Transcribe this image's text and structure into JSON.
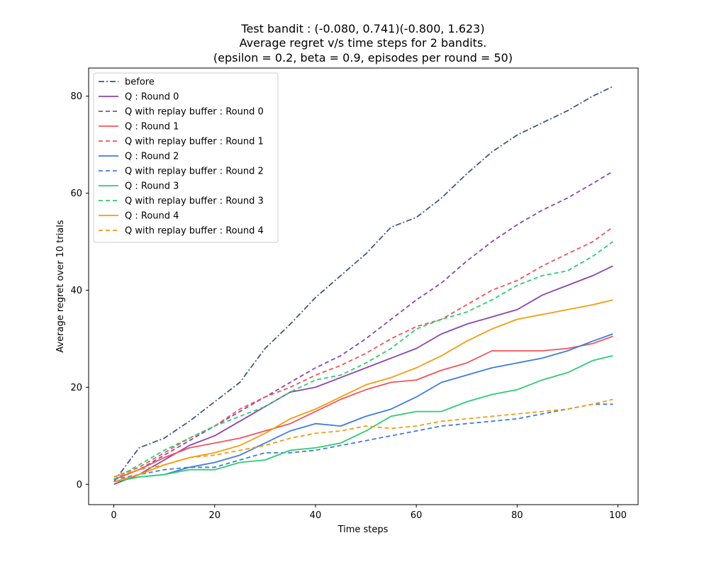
{
  "chart_data": {
    "type": "line",
    "title_lines": [
      "Test bandit : (-0.080, 0.741)(-0.800, 1.623)",
      "Average regret v/s time steps for 2 bandits.",
      "(epsilon = 0.2, beta = 0.9, episodes per round = 50)"
    ],
    "xlabel": "Time steps",
    "ylabel": "Average regret over 10 trials",
    "xlim": [
      -5,
      104
    ],
    "ylim": [
      -4.2,
      85.8
    ],
    "xticks": [
      0,
      20,
      40,
      60,
      80,
      100
    ],
    "yticks": [
      0,
      20,
      40,
      60,
      80
    ],
    "grid": false,
    "legend_position": "upper-left",
    "series": [
      {
        "name": "before",
        "color": "#3d5a80",
        "dash": "dashdot",
        "points": [
          [
            0,
            0.5
          ],
          [
            5,
            7.5
          ],
          [
            10,
            9.5
          ],
          [
            15,
            13
          ],
          [
            20,
            17
          ],
          [
            25,
            21
          ],
          [
            30,
            28
          ],
          [
            35,
            33
          ],
          [
            40,
            38.5
          ],
          [
            45,
            43
          ],
          [
            50,
            47.5
          ],
          [
            55,
            53
          ],
          [
            60,
            55
          ],
          [
            65,
            59
          ],
          [
            70,
            64
          ],
          [
            75,
            68.5
          ],
          [
            80,
            72
          ],
          [
            85,
            74.5
          ],
          [
            90,
            77
          ],
          [
            95,
            80
          ],
          [
            99,
            82
          ]
        ]
      },
      {
        "name": "Q : Round 0",
        "color": "#8e44ad",
        "dash": "solid",
        "points": [
          [
            0,
            0
          ],
          [
            5,
            2
          ],
          [
            10,
            5
          ],
          [
            15,
            8
          ],
          [
            20,
            10
          ],
          [
            25,
            13
          ],
          [
            30,
            16
          ],
          [
            35,
            19
          ],
          [
            40,
            20
          ],
          [
            45,
            22
          ],
          [
            50,
            24
          ],
          [
            55,
            26
          ],
          [
            60,
            28
          ],
          [
            65,
            31
          ],
          [
            70,
            33
          ],
          [
            75,
            34.5
          ],
          [
            80,
            36
          ],
          [
            85,
            39
          ],
          [
            90,
            41
          ],
          [
            95,
            43
          ],
          [
            99,
            45
          ]
        ]
      },
      {
        "name": "Q with replay buffer : Round 0",
        "color": "#8e44ad",
        "dash": "dashed",
        "points": [
          [
            0,
            1
          ],
          [
            5,
            3
          ],
          [
            10,
            6
          ],
          [
            15,
            9
          ],
          [
            20,
            12
          ],
          [
            25,
            15
          ],
          [
            30,
            18
          ],
          [
            35,
            21
          ],
          [
            40,
            24
          ],
          [
            45,
            26.5
          ],
          [
            50,
            30
          ],
          [
            55,
            34
          ],
          [
            60,
            38
          ],
          [
            65,
            41.5
          ],
          [
            70,
            46
          ],
          [
            75,
            50
          ],
          [
            80,
            53.5
          ],
          [
            85,
            56.5
          ],
          [
            90,
            59
          ],
          [
            95,
            62
          ],
          [
            99,
            64.5
          ]
        ]
      },
      {
        "name": "Q : Round 1",
        "color": "#f2545b",
        "dash": "solid",
        "points": [
          [
            0,
            1
          ],
          [
            5,
            3
          ],
          [
            10,
            5.5
          ],
          [
            15,
            7.5
          ],
          [
            20,
            8.5
          ],
          [
            25,
            9.5
          ],
          [
            30,
            11
          ],
          [
            35,
            12.5
          ],
          [
            40,
            15
          ],
          [
            45,
            17.5
          ],
          [
            50,
            19.5
          ],
          [
            55,
            21
          ],
          [
            60,
            21.5
          ],
          [
            65,
            23.5
          ],
          [
            70,
            25
          ],
          [
            75,
            27.5
          ],
          [
            80,
            27.5
          ],
          [
            85,
            27.5
          ],
          [
            90,
            28
          ],
          [
            95,
            29
          ],
          [
            99,
            30.5
          ]
        ]
      },
      {
        "name": "Q with replay buffer : Round 1",
        "color": "#f2545b",
        "dash": "dashed",
        "points": [
          [
            0,
            1.5
          ],
          [
            5,
            3.5
          ],
          [
            10,
            6.5
          ],
          [
            15,
            9.5
          ],
          [
            20,
            12
          ],
          [
            25,
            15.5
          ],
          [
            30,
            18
          ],
          [
            35,
            20
          ],
          [
            40,
            22.5
          ],
          [
            45,
            24.5
          ],
          [
            50,
            27
          ],
          [
            55,
            30
          ],
          [
            60,
            32.5
          ],
          [
            65,
            34
          ],
          [
            70,
            37
          ],
          [
            75,
            40
          ],
          [
            80,
            42
          ],
          [
            85,
            45
          ],
          [
            90,
            47.5
          ],
          [
            95,
            50
          ],
          [
            99,
            53
          ]
        ]
      },
      {
        "name": "Q : Round 2",
        "color": "#3f7be0",
        "dash": "solid",
        "points": [
          [
            0,
            0.5
          ],
          [
            5,
            1.5
          ],
          [
            10,
            2
          ],
          [
            15,
            3.5
          ],
          [
            20,
            4.5
          ],
          [
            25,
            6
          ],
          [
            30,
            8.5
          ],
          [
            35,
            11
          ],
          [
            40,
            12.5
          ],
          [
            45,
            12
          ],
          [
            50,
            14
          ],
          [
            55,
            15.5
          ],
          [
            60,
            18
          ],
          [
            65,
            21
          ],
          [
            70,
            22.5
          ],
          [
            75,
            24
          ],
          [
            80,
            25
          ],
          [
            85,
            26
          ],
          [
            90,
            27.5
          ],
          [
            95,
            29.5
          ],
          [
            99,
            31
          ]
        ]
      },
      {
        "name": "Q with replay buffer : Round 2",
        "color": "#3f7be0",
        "dash": "dashed",
        "points": [
          [
            0,
            1
          ],
          [
            5,
            2
          ],
          [
            10,
            3
          ],
          [
            15,
            3.5
          ],
          [
            20,
            3.5
          ],
          [
            25,
            5
          ],
          [
            30,
            6.5
          ],
          [
            35,
            6.5
          ],
          [
            40,
            7
          ],
          [
            45,
            8
          ],
          [
            50,
            9
          ],
          [
            55,
            10
          ],
          [
            60,
            11
          ],
          [
            65,
            12
          ],
          [
            70,
            12.5
          ],
          [
            75,
            13
          ],
          [
            80,
            13.5
          ],
          [
            85,
            14.5
          ],
          [
            90,
            15.5
          ],
          [
            95,
            16.5
          ],
          [
            99,
            16.5
          ]
        ]
      },
      {
        "name": "Q : Round 3",
        "color": "#2ecc71",
        "dash": "solid",
        "points": [
          [
            0,
            0.5
          ],
          [
            5,
            1.5
          ],
          [
            10,
            2
          ],
          [
            15,
            3
          ],
          [
            20,
            3
          ],
          [
            25,
            4.5
          ],
          [
            30,
            5
          ],
          [
            35,
            7
          ],
          [
            40,
            7.5
          ],
          [
            45,
            8.5
          ],
          [
            50,
            11
          ],
          [
            55,
            14
          ],
          [
            60,
            15
          ],
          [
            65,
            15
          ],
          [
            70,
            17
          ],
          [
            75,
            18.5
          ],
          [
            80,
            19.5
          ],
          [
            85,
            21.5
          ],
          [
            90,
            23
          ],
          [
            95,
            25.5
          ],
          [
            99,
            26.5
          ]
        ]
      },
      {
        "name": "Q with replay buffer : Round 3",
        "color": "#2ecc71",
        "dash": "dashed",
        "points": [
          [
            0,
            1
          ],
          [
            5,
            4
          ],
          [
            10,
            7
          ],
          [
            15,
            9.5
          ],
          [
            20,
            12
          ],
          [
            25,
            14
          ],
          [
            30,
            16
          ],
          [
            35,
            19
          ],
          [
            40,
            21.5
          ],
          [
            45,
            22.5
          ],
          [
            50,
            25
          ],
          [
            55,
            28
          ],
          [
            60,
            32
          ],
          [
            65,
            34
          ],
          [
            70,
            35.5
          ],
          [
            75,
            38
          ],
          [
            80,
            41
          ],
          [
            85,
            43
          ],
          [
            90,
            44
          ],
          [
            95,
            47
          ],
          [
            99,
            50
          ]
        ]
      },
      {
        "name": "Q : Round 4",
        "color": "#f39c12",
        "dash": "solid",
        "points": [
          [
            0,
            0.5
          ],
          [
            5,
            2
          ],
          [
            10,
            4
          ],
          [
            15,
            5.5
          ],
          [
            20,
            6.5
          ],
          [
            25,
            8
          ],
          [
            30,
            10.5
          ],
          [
            35,
            13.5
          ],
          [
            40,
            15.5
          ],
          [
            45,
            18
          ],
          [
            50,
            20.5
          ],
          [
            55,
            22
          ],
          [
            60,
            24
          ],
          [
            65,
            26.5
          ],
          [
            70,
            29.5
          ],
          [
            75,
            32
          ],
          [
            80,
            34
          ],
          [
            85,
            35
          ],
          [
            90,
            36
          ],
          [
            95,
            37
          ],
          [
            99,
            38
          ]
        ]
      },
      {
        "name": "Q with replay buffer : Round 4",
        "color": "#f39c12",
        "dash": "dashed",
        "points": [
          [
            0,
            1.5
          ],
          [
            5,
            3
          ],
          [
            10,
            4
          ],
          [
            15,
            5.5
          ],
          [
            20,
            6
          ],
          [
            25,
            7
          ],
          [
            30,
            8
          ],
          [
            35,
            9.5
          ],
          [
            40,
            10.5
          ],
          [
            45,
            11
          ],
          [
            50,
            12
          ],
          [
            55,
            11.5
          ],
          [
            60,
            12
          ],
          [
            65,
            13
          ],
          [
            70,
            13.5
          ],
          [
            75,
            14
          ],
          [
            80,
            14.5
          ],
          [
            85,
            15
          ],
          [
            90,
            15.5
          ],
          [
            95,
            16.5
          ],
          [
            99,
            17.5
          ]
        ]
      }
    ]
  }
}
